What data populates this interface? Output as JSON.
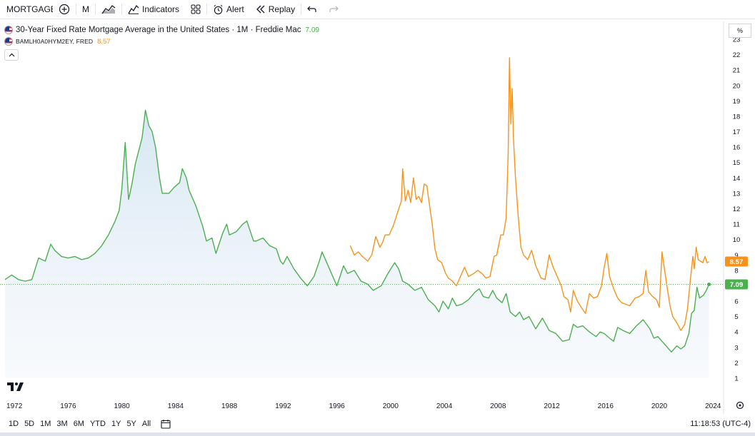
{
  "toolbar": {
    "symbol": "MORTGAGE",
    "interval": "M",
    "indicators_label": "Indicators",
    "alert_label": "Alert",
    "replay_label": "Replay"
  },
  "legend": {
    "series1_title": "30-Year Fixed Rate Mortgage Average in the United States · 1M · Freddie Mac",
    "series1_value": "7.09",
    "series2_title": "BAMLH0A0HYM2EY, FRED",
    "series2_value": "8.57"
  },
  "axis": {
    "unit_button": "%",
    "price_labels": [
      "23",
      "22",
      "21",
      "20",
      "19",
      "18",
      "17",
      "16",
      "15",
      "14",
      "13",
      "12",
      "11",
      "10",
      "9",
      "8",
      "7",
      "6",
      "5",
      "4",
      "3",
      "2",
      "1"
    ],
    "year_labels": [
      "1972",
      "1976",
      "1980",
      "1984",
      "1988",
      "1992",
      "1996",
      "2000",
      "2004",
      "2008",
      "2012",
      "2016",
      "2020",
      "2024"
    ]
  },
  "bottom": {
    "ranges": [
      "1D",
      "5D",
      "1M",
      "3M",
      "6M",
      "YTD",
      "1Y",
      "5Y",
      "All"
    ],
    "time": "11:18:53 (UTC-4)"
  },
  "colors": {
    "mortgage": "#4caf50",
    "hy": "#f7931a",
    "axis_text": "#131722",
    "grid": "#f0f3fa"
  },
  "chart_data": {
    "type": "line",
    "ylim": [
      1,
      23
    ],
    "xlim": [
      1971.3,
      2024.2
    ],
    "series": [
      {
        "name": "30-Year Fixed Rate Mortgage Average in the United States · 1M · Freddie Mac",
        "last_value": 7.09,
        "points": [
          [
            1971.3,
            7.4
          ],
          [
            1971.8,
            7.7
          ],
          [
            1972.3,
            7.4
          ],
          [
            1972.8,
            7.3
          ],
          [
            1973.3,
            7.4
          ],
          [
            1973.8,
            8.8
          ],
          [
            1974.3,
            8.6
          ],
          [
            1974.7,
            9.7
          ],
          [
            1975.0,
            9.3
          ],
          [
            1975.5,
            8.9
          ],
          [
            1976.0,
            8.8
          ],
          [
            1976.5,
            8.9
          ],
          [
            1977.0,
            8.7
          ],
          [
            1977.5,
            8.8
          ],
          [
            1978.0,
            9.1
          ],
          [
            1978.5,
            9.6
          ],
          [
            1979.0,
            10.3
          ],
          [
            1979.5,
            11.2
          ],
          [
            1979.8,
            11.9
          ],
          [
            1980.0,
            13.3
          ],
          [
            1980.25,
            16.3
          ],
          [
            1980.5,
            12.6
          ],
          [
            1980.75,
            13.6
          ],
          [
            1981.0,
            14.9
          ],
          [
            1981.5,
            16.6
          ],
          [
            1981.75,
            18.4
          ],
          [
            1982.0,
            17.4
          ],
          [
            1982.25,
            17.0
          ],
          [
            1982.5,
            16.0
          ],
          [
            1982.8,
            14.0
          ],
          [
            1983.0,
            13.0
          ],
          [
            1983.5,
            13.0
          ],
          [
            1983.9,
            13.4
          ],
          [
            1984.3,
            13.7
          ],
          [
            1984.5,
            14.6
          ],
          [
            1984.8,
            14.0
          ],
          [
            1985.0,
            13.2
          ],
          [
            1985.5,
            12.2
          ],
          [
            1986.0,
            10.9
          ],
          [
            1986.3,
            9.9
          ],
          [
            1986.7,
            10.1
          ],
          [
            1987.0,
            9.1
          ],
          [
            1987.5,
            10.4
          ],
          [
            1987.8,
            11.0
          ],
          [
            1988.0,
            10.3
          ],
          [
            1988.5,
            10.5
          ],
          [
            1989.0,
            11.0
          ],
          [
            1989.3,
            11.2
          ],
          [
            1989.8,
            9.9
          ],
          [
            1990.0,
            9.9
          ],
          [
            1990.5,
            10.1
          ],
          [
            1991.0,
            9.6
          ],
          [
            1991.5,
            9.4
          ],
          [
            1991.8,
            8.6
          ],
          [
            1992.0,
            8.4
          ],
          [
            1992.3,
            8.9
          ],
          [
            1992.8,
            8.1
          ],
          [
            1993.3,
            7.5
          ],
          [
            1993.8,
            7.0
          ],
          [
            1994.3,
            7.6
          ],
          [
            1994.7,
            8.6
          ],
          [
            1994.9,
            9.2
          ],
          [
            1995.3,
            8.4
          ],
          [
            1995.8,
            7.4
          ],
          [
            1996.0,
            7.0
          ],
          [
            1996.5,
            8.3
          ],
          [
            1996.8,
            7.8
          ],
          [
            1997.3,
            8.0
          ],
          [
            1997.8,
            7.3
          ],
          [
            1998.3,
            7.1
          ],
          [
            1998.7,
            6.7
          ],
          [
            1999.3,
            7.0
          ],
          [
            1999.8,
            7.8
          ],
          [
            2000.3,
            8.5
          ],
          [
            2000.6,
            8.1
          ],
          [
            2000.9,
            7.3
          ],
          [
            2001.3,
            7.1
          ],
          [
            2001.8,
            6.7
          ],
          [
            2002.3,
            6.9
          ],
          [
            2002.8,
            6.1
          ],
          [
            2003.3,
            5.7
          ],
          [
            2003.6,
            5.3
          ],
          [
            2003.9,
            6.0
          ],
          [
            2004.3,
            5.5
          ],
          [
            2004.6,
            6.2
          ],
          [
            2004.9,
            5.7
          ],
          [
            2005.3,
            5.8
          ],
          [
            2005.8,
            6.1
          ],
          [
            2006.3,
            6.6
          ],
          [
            2006.6,
            6.8
          ],
          [
            2006.9,
            6.3
          ],
          [
            2007.3,
            6.2
          ],
          [
            2007.6,
            6.7
          ],
          [
            2007.9,
            6.2
          ],
          [
            2008.3,
            5.9
          ],
          [
            2008.6,
            6.5
          ],
          [
            2008.9,
            5.3
          ],
          [
            2009.3,
            5.0
          ],
          [
            2009.6,
            5.3
          ],
          [
            2009.9,
            4.8
          ],
          [
            2010.3,
            5.0
          ],
          [
            2010.8,
            4.2
          ],
          [
            2011.3,
            4.9
          ],
          [
            2011.8,
            4.1
          ],
          [
            2012.3,
            3.9
          ],
          [
            2012.8,
            3.4
          ],
          [
            2013.3,
            3.5
          ],
          [
            2013.6,
            4.5
          ],
          [
            2013.9,
            4.3
          ],
          [
            2014.3,
            4.4
          ],
          [
            2014.8,
            4.0
          ],
          [
            2015.3,
            3.7
          ],
          [
            2015.6,
            4.0
          ],
          [
            2015.9,
            3.9
          ],
          [
            2016.3,
            3.6
          ],
          [
            2016.6,
            3.4
          ],
          [
            2016.9,
            4.3
          ],
          [
            2017.3,
            4.1
          ],
          [
            2017.8,
            3.9
          ],
          [
            2018.3,
            4.4
          ],
          [
            2018.8,
            4.8
          ],
          [
            2019.3,
            4.2
          ],
          [
            2019.6,
            3.6
          ],
          [
            2019.9,
            3.7
          ],
          [
            2020.3,
            3.3
          ],
          [
            2020.6,
            3.0
          ],
          [
            2020.9,
            2.7
          ],
          [
            2021.3,
            3.1
          ],
          [
            2021.6,
            2.9
          ],
          [
            2021.9,
            3.1
          ],
          [
            2022.2,
            3.9
          ],
          [
            2022.4,
            5.2
          ],
          [
            2022.6,
            5.4
          ],
          [
            2022.8,
            6.9
          ],
          [
            2023.0,
            6.2
          ],
          [
            2023.3,
            6.4
          ],
          [
            2023.5,
            6.7
          ],
          [
            2023.7,
            7.09
          ]
        ]
      },
      {
        "name": "BAMLH0A0HYM2EY, FRED",
        "last_value": 8.57,
        "points": [
          [
            1997.0,
            9.6
          ],
          [
            1997.3,
            9.0
          ],
          [
            1997.6,
            9.2
          ],
          [
            1997.9,
            8.9
          ],
          [
            1998.3,
            8.6
          ],
          [
            1998.6,
            9.0
          ],
          [
            1998.9,
            10.2
          ],
          [
            1999.2,
            9.5
          ],
          [
            1999.4,
            9.8
          ],
          [
            1999.6,
            10.3
          ],
          [
            1999.9,
            10.3
          ],
          [
            2000.2,
            10.9
          ],
          [
            2000.5,
            11.7
          ],
          [
            2000.8,
            12.5
          ],
          [
            2000.9,
            14.6
          ],
          [
            2001.1,
            12.5
          ],
          [
            2001.3,
            13.2
          ],
          [
            2001.5,
            12.4
          ],
          [
            2001.7,
            14.0
          ],
          [
            2001.9,
            12.6
          ],
          [
            2002.1,
            12.8
          ],
          [
            2002.3,
            12.4
          ],
          [
            2002.5,
            13.6
          ],
          [
            2002.7,
            13.5
          ],
          [
            2002.9,
            12.2
          ],
          [
            2003.1,
            11.0
          ],
          [
            2003.3,
            9.4
          ],
          [
            2003.5,
            8.7
          ],
          [
            2003.8,
            8.5
          ],
          [
            2004.1,
            7.8
          ],
          [
            2004.3,
            7.5
          ],
          [
            2004.6,
            7.3
          ],
          [
            2004.9,
            7.0
          ],
          [
            2005.2,
            7.6
          ],
          [
            2005.5,
            8.2
          ],
          [
            2005.8,
            7.6
          ],
          [
            2006.2,
            7.8
          ],
          [
            2006.5,
            8.0
          ],
          [
            2006.8,
            7.8
          ],
          [
            2007.1,
            7.5
          ],
          [
            2007.4,
            7.6
          ],
          [
            2007.7,
            8.9
          ],
          [
            2007.9,
            9.0
          ],
          [
            2008.2,
            10.3
          ],
          [
            2008.4,
            10.3
          ],
          [
            2008.6,
            11.4
          ],
          [
            2008.75,
            15.5
          ],
          [
            2008.85,
            21.8
          ],
          [
            2008.95,
            17.5
          ],
          [
            2009.05,
            19.8
          ],
          [
            2009.15,
            16.5
          ],
          [
            2009.3,
            14.0
          ],
          [
            2009.5,
            11.5
          ],
          [
            2009.7,
            9.5
          ],
          [
            2009.9,
            9.0
          ],
          [
            2010.2,
            8.7
          ],
          [
            2010.5,
            9.3
          ],
          [
            2010.8,
            8.3
          ],
          [
            2011.2,
            7.5
          ],
          [
            2011.5,
            7.4
          ],
          [
            2011.8,
            9.0
          ],
          [
            2012.1,
            8.2
          ],
          [
            2012.4,
            7.6
          ],
          [
            2012.7,
            7.0
          ],
          [
            2012.9,
            6.3
          ],
          [
            2013.2,
            6.1
          ],
          [
            2013.4,
            5.3
          ],
          [
            2013.6,
            6.7
          ],
          [
            2013.9,
            6.0
          ],
          [
            2014.2,
            5.6
          ],
          [
            2014.5,
            5.2
          ],
          [
            2014.8,
            6.5
          ],
          [
            2015.1,
            6.2
          ],
          [
            2015.4,
            6.3
          ],
          [
            2015.7,
            7.0
          ],
          [
            2015.9,
            8.2
          ],
          [
            2016.1,
            9.1
          ],
          [
            2016.3,
            7.6
          ],
          [
            2016.6,
            6.8
          ],
          [
            2016.9,
            6.2
          ],
          [
            2017.2,
            5.9
          ],
          [
            2017.5,
            5.8
          ],
          [
            2017.8,
            5.7
          ],
          [
            2018.2,
            6.2
          ],
          [
            2018.5,
            6.3
          ],
          [
            2018.8,
            6.5
          ],
          [
            2019.0,
            8.0
          ],
          [
            2019.2,
            6.6
          ],
          [
            2019.5,
            6.3
          ],
          [
            2019.8,
            6.1
          ],
          [
            2020.0,
            5.6
          ],
          [
            2020.2,
            9.2
          ],
          [
            2020.4,
            8.0
          ],
          [
            2020.6,
            6.8
          ],
          [
            2020.8,
            5.7
          ],
          [
            2021.0,
            5.0
          ],
          [
            2021.3,
            4.6
          ],
          [
            2021.6,
            4.1
          ],
          [
            2021.9,
            4.5
          ],
          [
            2022.1,
            5.5
          ],
          [
            2022.3,
            7.3
          ],
          [
            2022.5,
            8.9
          ],
          [
            2022.6,
            8.1
          ],
          [
            2022.75,
            9.5
          ],
          [
            2022.9,
            8.7
          ],
          [
            2023.05,
            8.6
          ],
          [
            2023.25,
            8.5
          ],
          [
            2023.4,
            8.9
          ],
          [
            2023.55,
            8.5
          ],
          [
            2023.7,
            8.57
          ]
        ]
      }
    ]
  }
}
